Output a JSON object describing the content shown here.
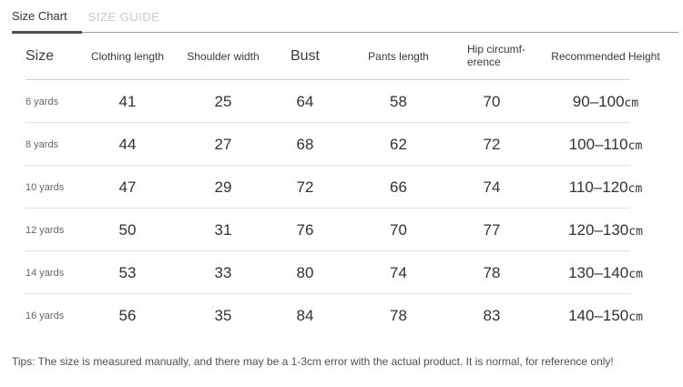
{
  "tabs": [
    {
      "label": "Size Chart",
      "active": true
    },
    {
      "label": "SIZE GUIDE",
      "active": false
    }
  ],
  "colors": {
    "active_tab_underline": "#534c48",
    "active_tab_text": "#333333",
    "inactive_tab_text": "#cbc8c6",
    "divider": "#e1e1e1"
  },
  "table": {
    "headers": {
      "size": "Size",
      "clothing_length": "Clothing length",
      "shoulder_width": "Shoulder width",
      "bust": "Bust",
      "pants_length": "Pants length",
      "hip": "Hip circumf-\nerence",
      "recommended_height": "Recommended Height"
    },
    "rows": [
      {
        "size": "6 yards",
        "clothing_length": "41",
        "shoulder_width": "25",
        "bust": "64",
        "pants_length": "58",
        "hip": "70",
        "height_range": "90–100",
        "height_unit": "cm"
      },
      {
        "size": "8 yards",
        "clothing_length": "44",
        "shoulder_width": "27",
        "bust": "68",
        "pants_length": "62",
        "hip": "72",
        "height_range": "100–110",
        "height_unit": "cm"
      },
      {
        "size": "10 yards",
        "clothing_length": "47",
        "shoulder_width": "29",
        "bust": "72",
        "pants_length": "66",
        "hip": "74",
        "height_range": "110–120",
        "height_unit": "cm"
      },
      {
        "size": "12 yards",
        "clothing_length": "50",
        "shoulder_width": "31",
        "bust": "76",
        "pants_length": "70",
        "hip": "77",
        "height_range": "120–130",
        "height_unit": "cm"
      },
      {
        "size": "14 yards",
        "clothing_length": "53",
        "shoulder_width": "33",
        "bust": "80",
        "pants_length": "74",
        "hip": "78",
        "height_range": "130–140",
        "height_unit": "cm"
      },
      {
        "size": "16 yards",
        "clothing_length": "56",
        "shoulder_width": "35",
        "bust": "84",
        "pants_length": "78",
        "hip": "83",
        "height_range": "140–150",
        "height_unit": "cm"
      }
    ]
  },
  "tips": "Tips: The size is measured manually, and there may be a 1-3cm error with the actual product. It is normal, for reference only!"
}
